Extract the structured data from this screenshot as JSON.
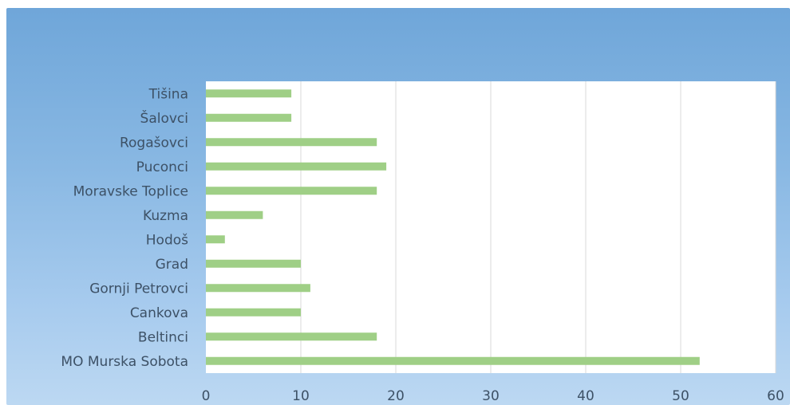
{
  "chart_data": {
    "type": "bar",
    "orientation": "horizontal",
    "title": "",
    "xlabel": "",
    "ylabel": "",
    "categories": [
      "Tišina",
      "Šalovci",
      "Rogašovci",
      "Puconci",
      "Moravske Toplice",
      "Kuzma",
      "Hodoš",
      "Grad",
      "Gornji Petrovci",
      "Cankova",
      "Beltinci",
      "MO Murska Sobota"
    ],
    "values": [
      9,
      9,
      18,
      19,
      18,
      6,
      2,
      10,
      11,
      10,
      18,
      52
    ],
    "xlim": [
      0,
      60
    ],
    "xticks": [
      "0",
      "10",
      "20",
      "30",
      "40",
      "50",
      "60"
    ],
    "grid": "vertical",
    "legend": "none",
    "colors": {
      "bar": "#9fcf86",
      "plot_background": "#ffffff",
      "gridline": "#d9d9d9",
      "chart_background": "#8ab8e2"
    }
  }
}
